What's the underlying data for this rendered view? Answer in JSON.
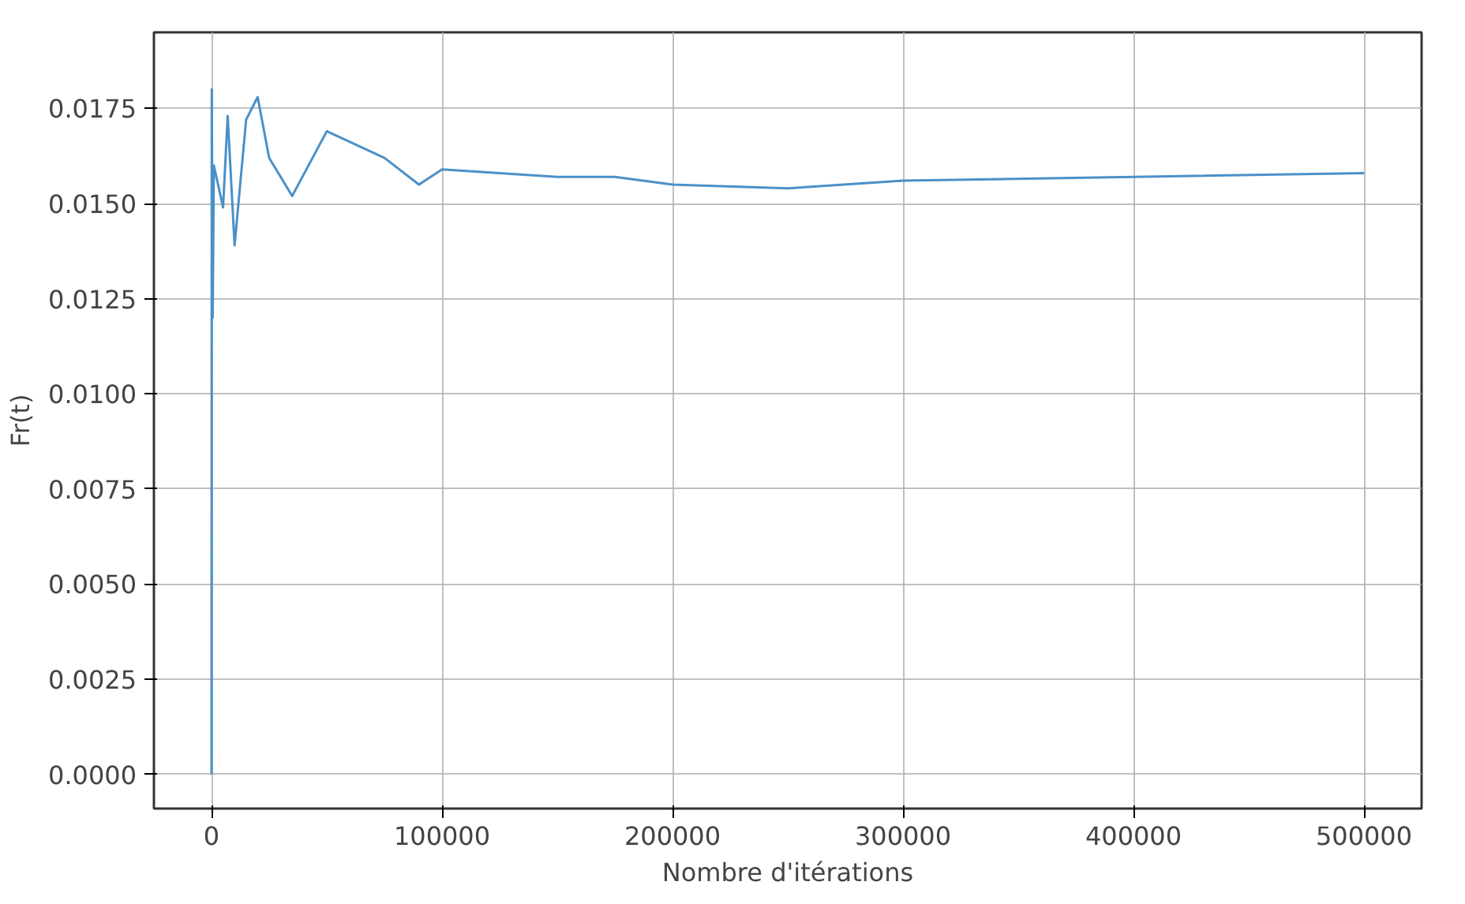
{
  "chart_data": {
    "type": "line",
    "xlabel": "Nombre d'itérations",
    "ylabel": "Fr(t)",
    "x": [
      0,
      100,
      500,
      1000,
      5000,
      7000,
      10000,
      15000,
      20000,
      25000,
      35000,
      50000,
      75000,
      90000,
      100000,
      150000,
      175000,
      200000,
      250000,
      300000,
      400000,
      500000
    ],
    "series": [
      {
        "color": "#4a90c8",
        "values": [
          0,
          0.018,
          0.012,
          0.016,
          0.0149,
          0.0173,
          0.0139,
          0.0172,
          0.0178,
          0.0162,
          0.0152,
          0.0169,
          0.0162,
          0.0155,
          0.0159,
          0.0157,
          0.0157,
          0.0155,
          0.0154,
          0.0156,
          0.0157,
          0.0158
        ]
      }
    ],
    "xlim": [
      -25000,
      525000
    ],
    "ylim": [
      -0.0009,
      0.0195
    ],
    "xticks": [
      0,
      100000,
      200000,
      300000,
      400000,
      500000
    ],
    "yticks": [
      {
        "value": 0,
        "label": "0.0000"
      },
      {
        "value": 0.0025,
        "label": "0.0025"
      },
      {
        "value": 0.005,
        "label": "0.0050"
      },
      {
        "value": 0.0075,
        "label": "0.0075"
      },
      {
        "value": 0.01,
        "label": "0.0100"
      },
      {
        "value": 0.0125,
        "label": "0.0125"
      },
      {
        "value": 0.015,
        "label": "0.0150"
      },
      {
        "value": 0.0175,
        "label": "0.0175"
      }
    ],
    "grid": true,
    "marker": "none",
    "line_style": "solid"
  }
}
